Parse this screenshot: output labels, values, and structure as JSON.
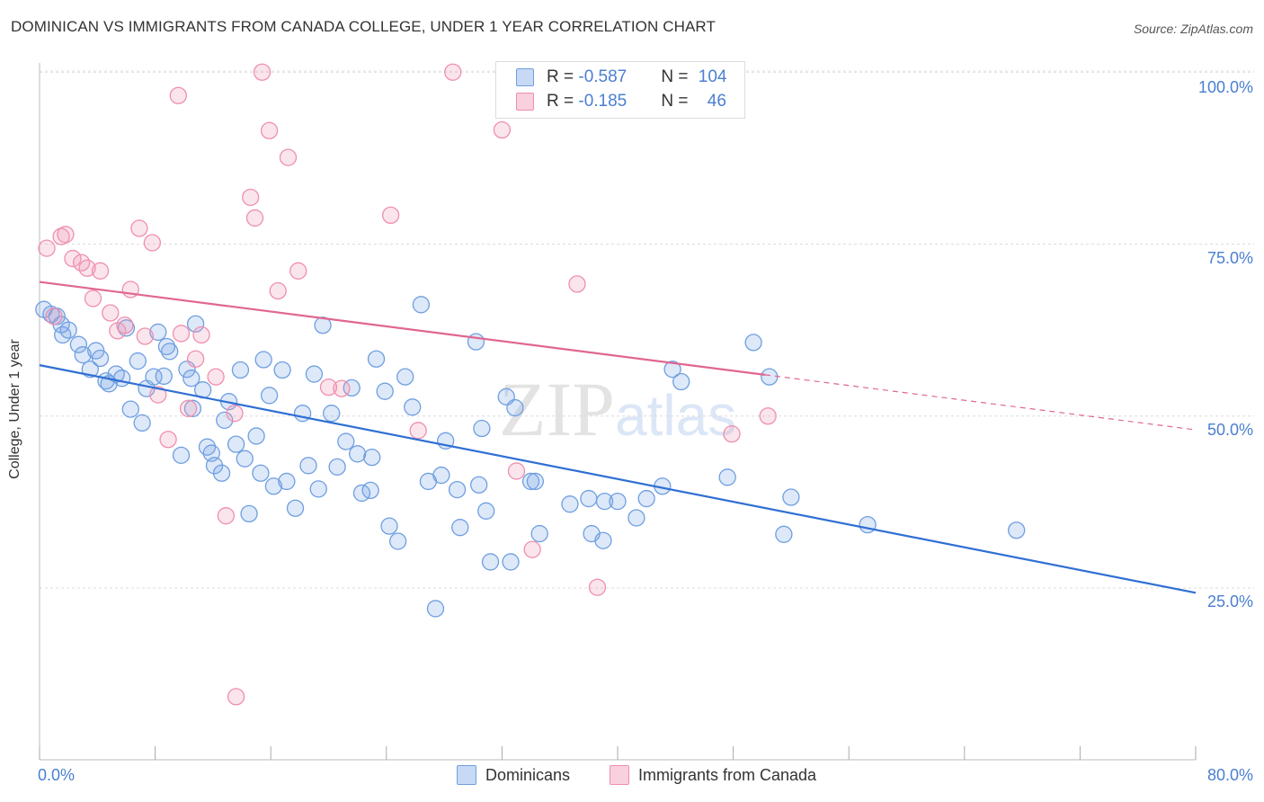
{
  "header": {
    "title": "DOMINICAN VS IMMIGRANTS FROM CANADA COLLEGE, UNDER 1 YEAR CORRELATION CHART",
    "source": "Source: ZipAtlas.com"
  },
  "watermark": {
    "zip": "ZIP",
    "atlas": "atlas"
  },
  "legend": {
    "rows": [
      {
        "r_label": "R = ",
        "r_value": "-0.587",
        "n_label": "N = ",
        "n_value": "104",
        "color": "#6f9fe0"
      },
      {
        "r_label": "R = ",
        "r_value": "-0.185",
        "n_label": "N = ",
        "n_value": "46",
        "color": "#ef8fae"
      }
    ]
  },
  "bottom_legend": {
    "items": [
      {
        "label": "Dominicans",
        "color": "#6f9fe0"
      },
      {
        "label": "Immigrants from Canada",
        "color": "#ef8fae"
      }
    ]
  },
  "chart_data": {
    "type": "scatter",
    "title": "DOMINICAN VS IMMIGRANTS FROM CANADA COLLEGE, UNDER 1 YEAR CORRELATION CHART",
    "xlabel": "",
    "ylabel": "College, Under 1 year",
    "xlim": [
      0,
      80
    ],
    "ylim": [
      2,
      105
    ],
    "x_tick_labels": [
      "0.0%",
      "80.0%"
    ],
    "x_ticks": [
      0,
      8,
      16,
      24,
      32,
      40,
      48,
      56,
      64,
      72,
      80
    ],
    "y_ticks": [
      25,
      50,
      75,
      100
    ],
    "y_tick_labels": [
      "25.0%",
      "50.0%",
      "75.0%",
      "100.0%"
    ],
    "grid": true,
    "legend_position": "top-center",
    "series": [
      {
        "name": "Dominicans",
        "color": "#6f9fe0",
        "trend": {
          "x": [
            0,
            80
          ],
          "y": [
            57.4,
            24.3
          ]
        },
        "points": [
          [
            0.3,
            65.5
          ],
          [
            0.8,
            64.8
          ],
          [
            1.2,
            64.5
          ],
          [
            1.5,
            63.3
          ],
          [
            1.6,
            61.8
          ],
          [
            2.0,
            62.5
          ],
          [
            2.7,
            60.4
          ],
          [
            3.0,
            58.9
          ],
          [
            3.5,
            56.8
          ],
          [
            3.9,
            59.5
          ],
          [
            4.2,
            58.4
          ],
          [
            4.6,
            55.1
          ],
          [
            4.8,
            54.7
          ],
          [
            5.3,
            56.1
          ],
          [
            5.7,
            55.5
          ],
          [
            6.0,
            62.8
          ],
          [
            6.3,
            51.0
          ],
          [
            6.8,
            58.0
          ],
          [
            7.1,
            49.0
          ],
          [
            7.4,
            54.0
          ],
          [
            7.9,
            55.7
          ],
          [
            8.2,
            62.2
          ],
          [
            8.6,
            55.8
          ],
          [
            8.8,
            60.1
          ],
          [
            9.0,
            59.4
          ],
          [
            9.8,
            44.3
          ],
          [
            10.2,
            56.8
          ],
          [
            10.6,
            51.1
          ],
          [
            10.8,
            63.4
          ],
          [
            11.3,
            53.8
          ],
          [
            11.6,
            45.5
          ],
          [
            11.9,
            44.6
          ],
          [
            12.1,
            42.8
          ],
          [
            12.6,
            41.7
          ],
          [
            12.8,
            49.4
          ],
          [
            13.1,
            52.1
          ],
          [
            13.6,
            45.9
          ],
          [
            13.9,
            56.7
          ],
          [
            14.2,
            43.8
          ],
          [
            14.5,
            35.8
          ],
          [
            15.0,
            47.1
          ],
          [
            15.3,
            41.7
          ],
          [
            15.5,
            58.2
          ],
          [
            15.9,
            53.0
          ],
          [
            16.2,
            39.8
          ],
          [
            16.8,
            56.7
          ],
          [
            17.1,
            40.5
          ],
          [
            17.7,
            36.6
          ],
          [
            18.2,
            50.4
          ],
          [
            18.6,
            42.8
          ],
          [
            19.0,
            56.1
          ],
          [
            19.3,
            39.4
          ],
          [
            19.6,
            63.2
          ],
          [
            20.2,
            50.4
          ],
          [
            20.6,
            42.6
          ],
          [
            21.2,
            46.3
          ],
          [
            21.6,
            54.1
          ],
          [
            22.0,
            44.5
          ],
          [
            22.3,
            38.8
          ],
          [
            22.9,
            39.2
          ],
          [
            23.3,
            58.3
          ],
          [
            23.9,
            53.6
          ],
          [
            24.2,
            34.0
          ],
          [
            24.8,
            31.8
          ],
          [
            25.3,
            55.7
          ],
          [
            25.8,
            51.3
          ],
          [
            26.4,
            66.2
          ],
          [
            26.9,
            40.5
          ],
          [
            27.4,
            22.0
          ],
          [
            27.8,
            41.4
          ],
          [
            28.1,
            46.4
          ],
          [
            28.9,
            39.3
          ],
          [
            29.1,
            33.8
          ],
          [
            30.2,
            60.8
          ],
          [
            30.4,
            40.0
          ],
          [
            30.6,
            48.2
          ],
          [
            30.9,
            36.2
          ],
          [
            31.2,
            28.8
          ],
          [
            32.3,
            52.8
          ],
          [
            32.6,
            28.8
          ],
          [
            32.9,
            51.2
          ],
          [
            34.0,
            40.5
          ],
          [
            34.3,
            40.5
          ],
          [
            34.6,
            32.9
          ],
          [
            36.7,
            37.2
          ],
          [
            38.0,
            38.0
          ],
          [
            38.2,
            32.9
          ],
          [
            39.0,
            31.9
          ],
          [
            39.1,
            37.6
          ],
          [
            40.0,
            37.6
          ],
          [
            41.3,
            35.2
          ],
          [
            43.1,
            39.8
          ],
          [
            43.8,
            56.8
          ],
          [
            44.4,
            55.0
          ],
          [
            47.6,
            41.1
          ],
          [
            49.4,
            60.7
          ],
          [
            50.5,
            55.7
          ],
          [
            51.5,
            32.8
          ],
          [
            52.0,
            38.2
          ],
          [
            57.3,
            34.2
          ],
          [
            67.6,
            33.4
          ],
          [
            42.0,
            38.0
          ],
          [
            10.5,
            55.5
          ],
          [
            23.0,
            44.0
          ]
        ]
      },
      {
        "name": "Immigrants from Canada",
        "color": "#ef8fae",
        "trend": {
          "x": [
            0,
            50.2
          ],
          "y": [
            69.5,
            56.0
          ]
        },
        "trend_dashed": {
          "x": [
            50.2,
            80
          ],
          "y": [
            56.0,
            48.0
          ]
        },
        "points": [
          [
            0.5,
            74.4
          ],
          [
            1.0,
            64.5
          ],
          [
            1.5,
            76.1
          ],
          [
            1.8,
            76.4
          ],
          [
            2.3,
            72.9
          ],
          [
            2.9,
            72.3
          ],
          [
            3.3,
            71.5
          ],
          [
            3.7,
            67.1
          ],
          [
            4.2,
            71.1
          ],
          [
            4.9,
            65.0
          ],
          [
            5.4,
            62.4
          ],
          [
            5.9,
            63.2
          ],
          [
            6.3,
            68.4
          ],
          [
            6.9,
            77.3
          ],
          [
            7.3,
            61.6
          ],
          [
            7.8,
            75.2
          ],
          [
            8.2,
            53.1
          ],
          [
            8.9,
            46.6
          ],
          [
            9.6,
            96.6
          ],
          [
            9.8,
            62.0
          ],
          [
            10.3,
            51.1
          ],
          [
            10.8,
            58.3
          ],
          [
            11.2,
            61.8
          ],
          [
            12.2,
            55.7
          ],
          [
            12.9,
            35.5
          ],
          [
            13.5,
            50.4
          ],
          [
            13.6,
            9.2
          ],
          [
            14.6,
            81.8
          ],
          [
            14.9,
            78.8
          ],
          [
            15.4,
            100.0
          ],
          [
            15.9,
            91.5
          ],
          [
            16.5,
            68.2
          ],
          [
            17.2,
            87.6
          ],
          [
            17.9,
            71.1
          ],
          [
            20.9,
            54.0
          ],
          [
            24.3,
            79.2
          ],
          [
            26.2,
            47.9
          ],
          [
            28.6,
            100.0
          ],
          [
            32.0,
            91.6
          ],
          [
            33.0,
            42.0
          ],
          [
            34.1,
            30.6
          ],
          [
            37.2,
            69.2
          ],
          [
            38.6,
            25.1
          ],
          [
            47.9,
            47.4
          ],
          [
            50.4,
            50.0
          ],
          [
            20.0,
            54.2
          ]
        ]
      }
    ]
  }
}
